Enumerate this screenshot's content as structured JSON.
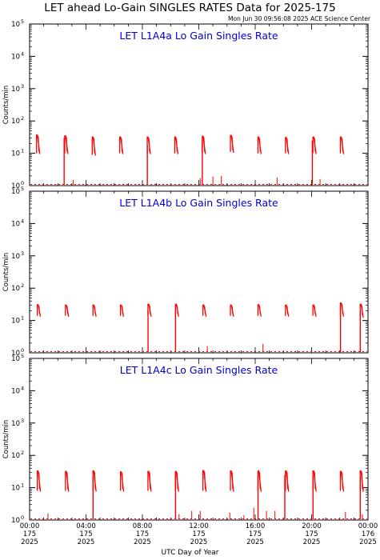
{
  "title": "LET ahead Lo-Gain SINGLES RATES Data for 2025-175",
  "timestamp": "Mon Jun 30 09:56:08 2025 ACE Science Center",
  "xlabel": "UTC Day of Year",
  "colors": {
    "data": "#ff0000",
    "panel_title": "#0000cc",
    "axes": "#000000"
  },
  "chart_data": [
    {
      "type": "line",
      "title": "LET L1A4a Lo Gain Singles Rate",
      "ylabel": "Counts/min",
      "ylog": true,
      "ylim": [
        1,
        100000
      ],
      "xlim": [
        0,
        24
      ],
      "y_ticks": [
        {
          "v": 1,
          "t": "10"
        },
        {
          "v": 10,
          "t": "10"
        },
        {
          "v": 100,
          "t": "10"
        },
        {
          "v": 1000,
          "t": "10"
        },
        {
          "v": 10000,
          "t": "10"
        },
        {
          "v": 100000,
          "t": "10"
        }
      ],
      "y_tick_exponents": [
        "0",
        "1",
        "2",
        "3",
        "4",
        "5"
      ],
      "bursts": [
        {
          "x": 0.55,
          "top": 38,
          "bottom": 10
        },
        {
          "x": 2.55,
          "top": 36,
          "bottom": 10
        },
        {
          "x": 4.5,
          "top": 33,
          "bottom": 9
        },
        {
          "x": 6.45,
          "top": 33,
          "bottom": 10
        },
        {
          "x": 8.4,
          "top": 33,
          "bottom": 10
        },
        {
          "x": 10.35,
          "top": 33,
          "bottom": 10
        },
        {
          "x": 12.3,
          "top": 35,
          "bottom": 10
        },
        {
          "x": 14.3,
          "top": 37,
          "bottom": 11
        },
        {
          "x": 16.25,
          "top": 33,
          "bottom": 10
        },
        {
          "x": 18.2,
          "top": 32,
          "bottom": 10
        },
        {
          "x": 20.15,
          "top": 33,
          "bottom": 10
        },
        {
          "x": 22.1,
          "top": 33,
          "bottom": 10
        }
      ],
      "drops": [
        {
          "x": 2.45,
          "top": 30
        },
        {
          "x": 8.35,
          "top": 18
        },
        {
          "x": 12.25,
          "top": 25
        },
        {
          "x": 20.05,
          "top": 25
        }
      ],
      "spikes": [
        {
          "x": 3.1,
          "y": 1.5
        },
        {
          "x": 12.1,
          "y": 1.7
        },
        {
          "x": 13.0,
          "y": 1.9
        },
        {
          "x": 13.6,
          "y": 2.0
        },
        {
          "x": 17.55,
          "y": 1.8
        },
        {
          "x": 20.6,
          "y": 1.6
        }
      ],
      "floor": 0.9
    },
    {
      "type": "line",
      "title": "LET L1A4b Lo Gain Singles Rate",
      "ylabel": "Counts/min",
      "ylog": true,
      "ylim": [
        1,
        100000
      ],
      "xlim": [
        0,
        24
      ],
      "y_ticks": [
        {
          "v": 1,
          "t": "10"
        },
        {
          "v": 10,
          "t": "10"
        },
        {
          "v": 100,
          "t": "10"
        },
        {
          "v": 1000,
          "t": "10"
        },
        {
          "v": 10000,
          "t": "10"
        },
        {
          "v": 100000,
          "t": "10"
        }
      ],
      "y_tick_exponents": [
        "0",
        "1",
        "2",
        "3",
        "4",
        "5"
      ],
      "bursts": [
        {
          "x": 0.6,
          "top": 32,
          "bottom": 14
        },
        {
          "x": 2.6,
          "top": 31,
          "bottom": 14
        },
        {
          "x": 4.55,
          "top": 31,
          "bottom": 14
        },
        {
          "x": 6.5,
          "top": 31,
          "bottom": 14
        },
        {
          "x": 8.45,
          "top": 33,
          "bottom": 14
        },
        {
          "x": 10.4,
          "top": 33,
          "bottom": 14
        },
        {
          "x": 12.35,
          "top": 31,
          "bottom": 14
        },
        {
          "x": 14.3,
          "top": 31,
          "bottom": 14
        },
        {
          "x": 16.25,
          "top": 32,
          "bottom": 14
        },
        {
          "x": 18.2,
          "top": 31,
          "bottom": 14
        },
        {
          "x": 20.15,
          "top": 31,
          "bottom": 14
        },
        {
          "x": 22.1,
          "top": 36,
          "bottom": 14
        },
        {
          "x": 23.5,
          "top": 33,
          "bottom": 13
        }
      ],
      "drops": [
        {
          "x": 8.4,
          "top": 20
        },
        {
          "x": 10.35,
          "top": 22
        },
        {
          "x": 22.05,
          "top": 25
        },
        {
          "x": 23.45,
          "top": 20
        }
      ],
      "spikes": [
        {
          "x": 12.6,
          "y": 1.6
        },
        {
          "x": 16.55,
          "y": 1.9
        }
      ],
      "floor": 0.9
    },
    {
      "type": "line",
      "title": "LET L1A4c Lo Gain Singles Rate",
      "ylabel": "Counts/min",
      "ylog": true,
      "ylim": [
        1,
        100000
      ],
      "xlim": [
        0,
        24
      ],
      "y_ticks": [
        {
          "v": 1,
          "t": "10"
        },
        {
          "v": 10,
          "t": "10"
        },
        {
          "v": 100,
          "t": "10"
        },
        {
          "v": 1000,
          "t": "10"
        },
        {
          "v": 10000,
          "t": "10"
        },
        {
          "v": 100000,
          "t": "10"
        }
      ],
      "y_tick_exponents": [
        "0",
        "1",
        "2",
        "3",
        "4",
        "5"
      ],
      "bursts": [
        {
          "x": 0.6,
          "top": 34,
          "bottom": 8
        },
        {
          "x": 2.6,
          "top": 33,
          "bottom": 8
        },
        {
          "x": 4.55,
          "top": 34,
          "bottom": 8
        },
        {
          "x": 6.5,
          "top": 32,
          "bottom": 8
        },
        {
          "x": 8.45,
          "top": 33,
          "bottom": 8
        },
        {
          "x": 10.4,
          "top": 33,
          "bottom": 8
        },
        {
          "x": 12.35,
          "top": 35,
          "bottom": 8
        },
        {
          "x": 14.3,
          "top": 34,
          "bottom": 8
        },
        {
          "x": 16.25,
          "top": 34,
          "bottom": 8
        },
        {
          "x": 18.2,
          "top": 34,
          "bottom": 8
        },
        {
          "x": 20.15,
          "top": 34,
          "bottom": 8
        },
        {
          "x": 22.1,
          "top": 33,
          "bottom": 8
        },
        {
          "x": 23.5,
          "top": 34,
          "bottom": 8
        }
      ],
      "drops": [
        {
          "x": 4.5,
          "top": 22
        },
        {
          "x": 10.35,
          "top": 25
        },
        {
          "x": 16.2,
          "top": 25
        },
        {
          "x": 18.1,
          "top": 25
        },
        {
          "x": 20.1,
          "top": 24
        },
        {
          "x": 23.45,
          "top": 22
        }
      ],
      "spikes": [
        {
          "x": 1.3,
          "y": 1.6
        },
        {
          "x": 10.6,
          "y": 1.5
        },
        {
          "x": 11.5,
          "y": 1.9
        },
        {
          "x": 12.1,
          "y": 1.9
        },
        {
          "x": 14.2,
          "y": 1.7
        },
        {
          "x": 15.2,
          "y": 1.4
        },
        {
          "x": 15.9,
          "y": 2.4
        },
        {
          "x": 16.8,
          "y": 1.9
        },
        {
          "x": 17.4,
          "y": 1.9
        },
        {
          "x": 22.4,
          "y": 1.8
        },
        {
          "x": 23.6,
          "y": 1.5
        }
      ],
      "floor": 0.9
    }
  ],
  "x_ticks": [
    {
      "v": 0,
      "time": "00:00",
      "doy": "175",
      "year": "2025"
    },
    {
      "v": 4,
      "time": "04:00",
      "doy": "175",
      "year": "2025"
    },
    {
      "v": 8,
      "time": "08:00",
      "doy": "175",
      "year": "2025"
    },
    {
      "v": 12,
      "time": "12:00",
      "doy": "175",
      "year": "2025"
    },
    {
      "v": 16,
      "time": "16:00",
      "doy": "175",
      "year": "2025"
    },
    {
      "v": 20,
      "time": "20:00",
      "doy": "175",
      "year": "2025"
    },
    {
      "v": 24,
      "time": "00:00",
      "doy": "176",
      "year": "2025"
    }
  ]
}
